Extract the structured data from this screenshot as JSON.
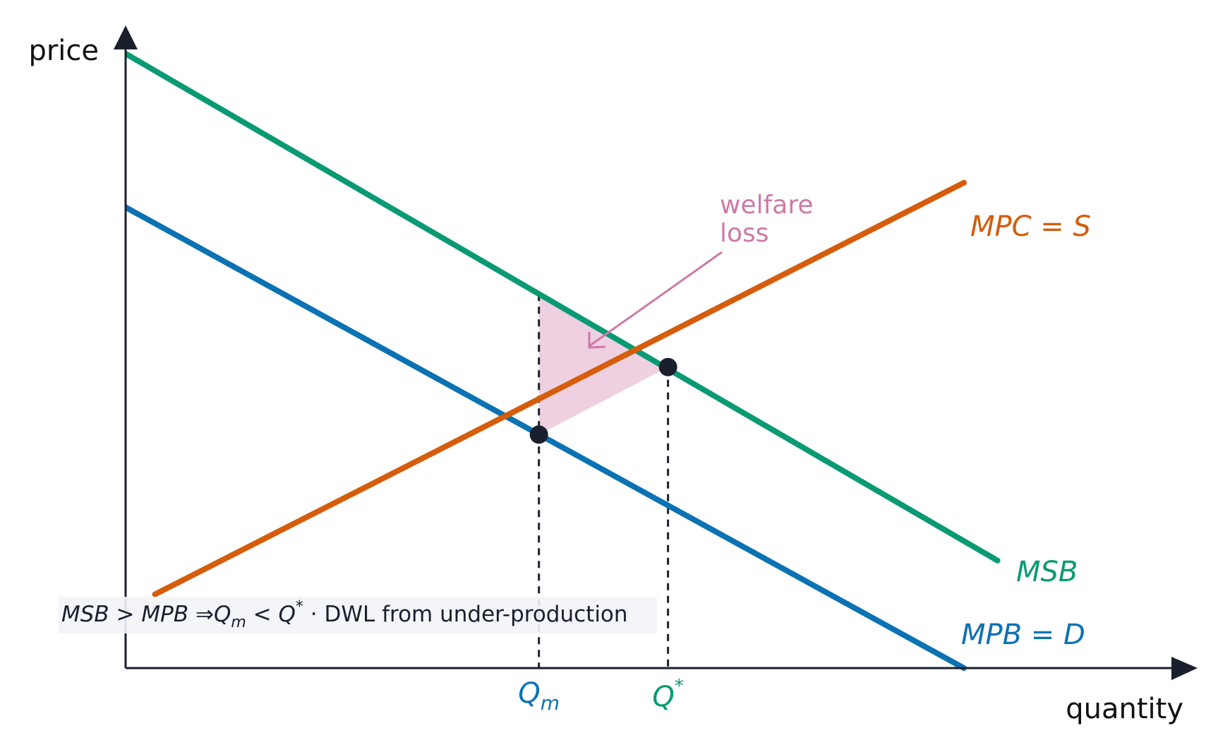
{
  "chart_data": {
    "type": "line",
    "xlabel": "quantity",
    "ylabel": "price",
    "xlim": [
      0,
      10
    ],
    "ylim": [
      0,
      10
    ],
    "series": [
      {
        "name": "MSB",
        "color": "#099a73",
        "x": [
          0,
          10.4
        ],
        "y": [
          10.0,
          1.75
        ]
      },
      {
        "name": "MPB = D",
        "color": "#0b72b3",
        "x": [
          0,
          10.0
        ],
        "y": [
          7.5,
          0.0
        ]
      },
      {
        "name": "MPC = S",
        "color": "#d55d0b",
        "x": [
          0.35,
          10.0
        ],
        "y": [
          1.2,
          7.9
        ]
      }
    ],
    "points": [
      {
        "name": "Q_m",
        "x": 4.93,
        "y": 3.8
      },
      {
        "name": "Q*",
        "x": 6.47,
        "y": 4.9
      }
    ],
    "welfare_loss_area": {
      "x_from": 4.93,
      "x_to": 6.47,
      "color": "#cd79a7"
    },
    "curve_labels": {
      "msb": "MSB",
      "mpb": "MPB = D",
      "mpc": "MPC = S"
    },
    "q_labels": {
      "qm_main": "Q",
      "qm_sub": "m",
      "qstar_main": "Q",
      "qstar_sup": "*"
    },
    "annotation": {
      "line1": "welfare",
      "line2": "loss",
      "color": "#cd79a7"
    },
    "note": {
      "msb": "MSB",
      "gt": " > ",
      "mpb": "MPB",
      "implies": "  ⇒",
      "q": "Q",
      "m": "m",
      "lt": " < ",
      "q2": "Q",
      "star": "*",
      "rest": "  ·  DWL from under-production"
    }
  }
}
